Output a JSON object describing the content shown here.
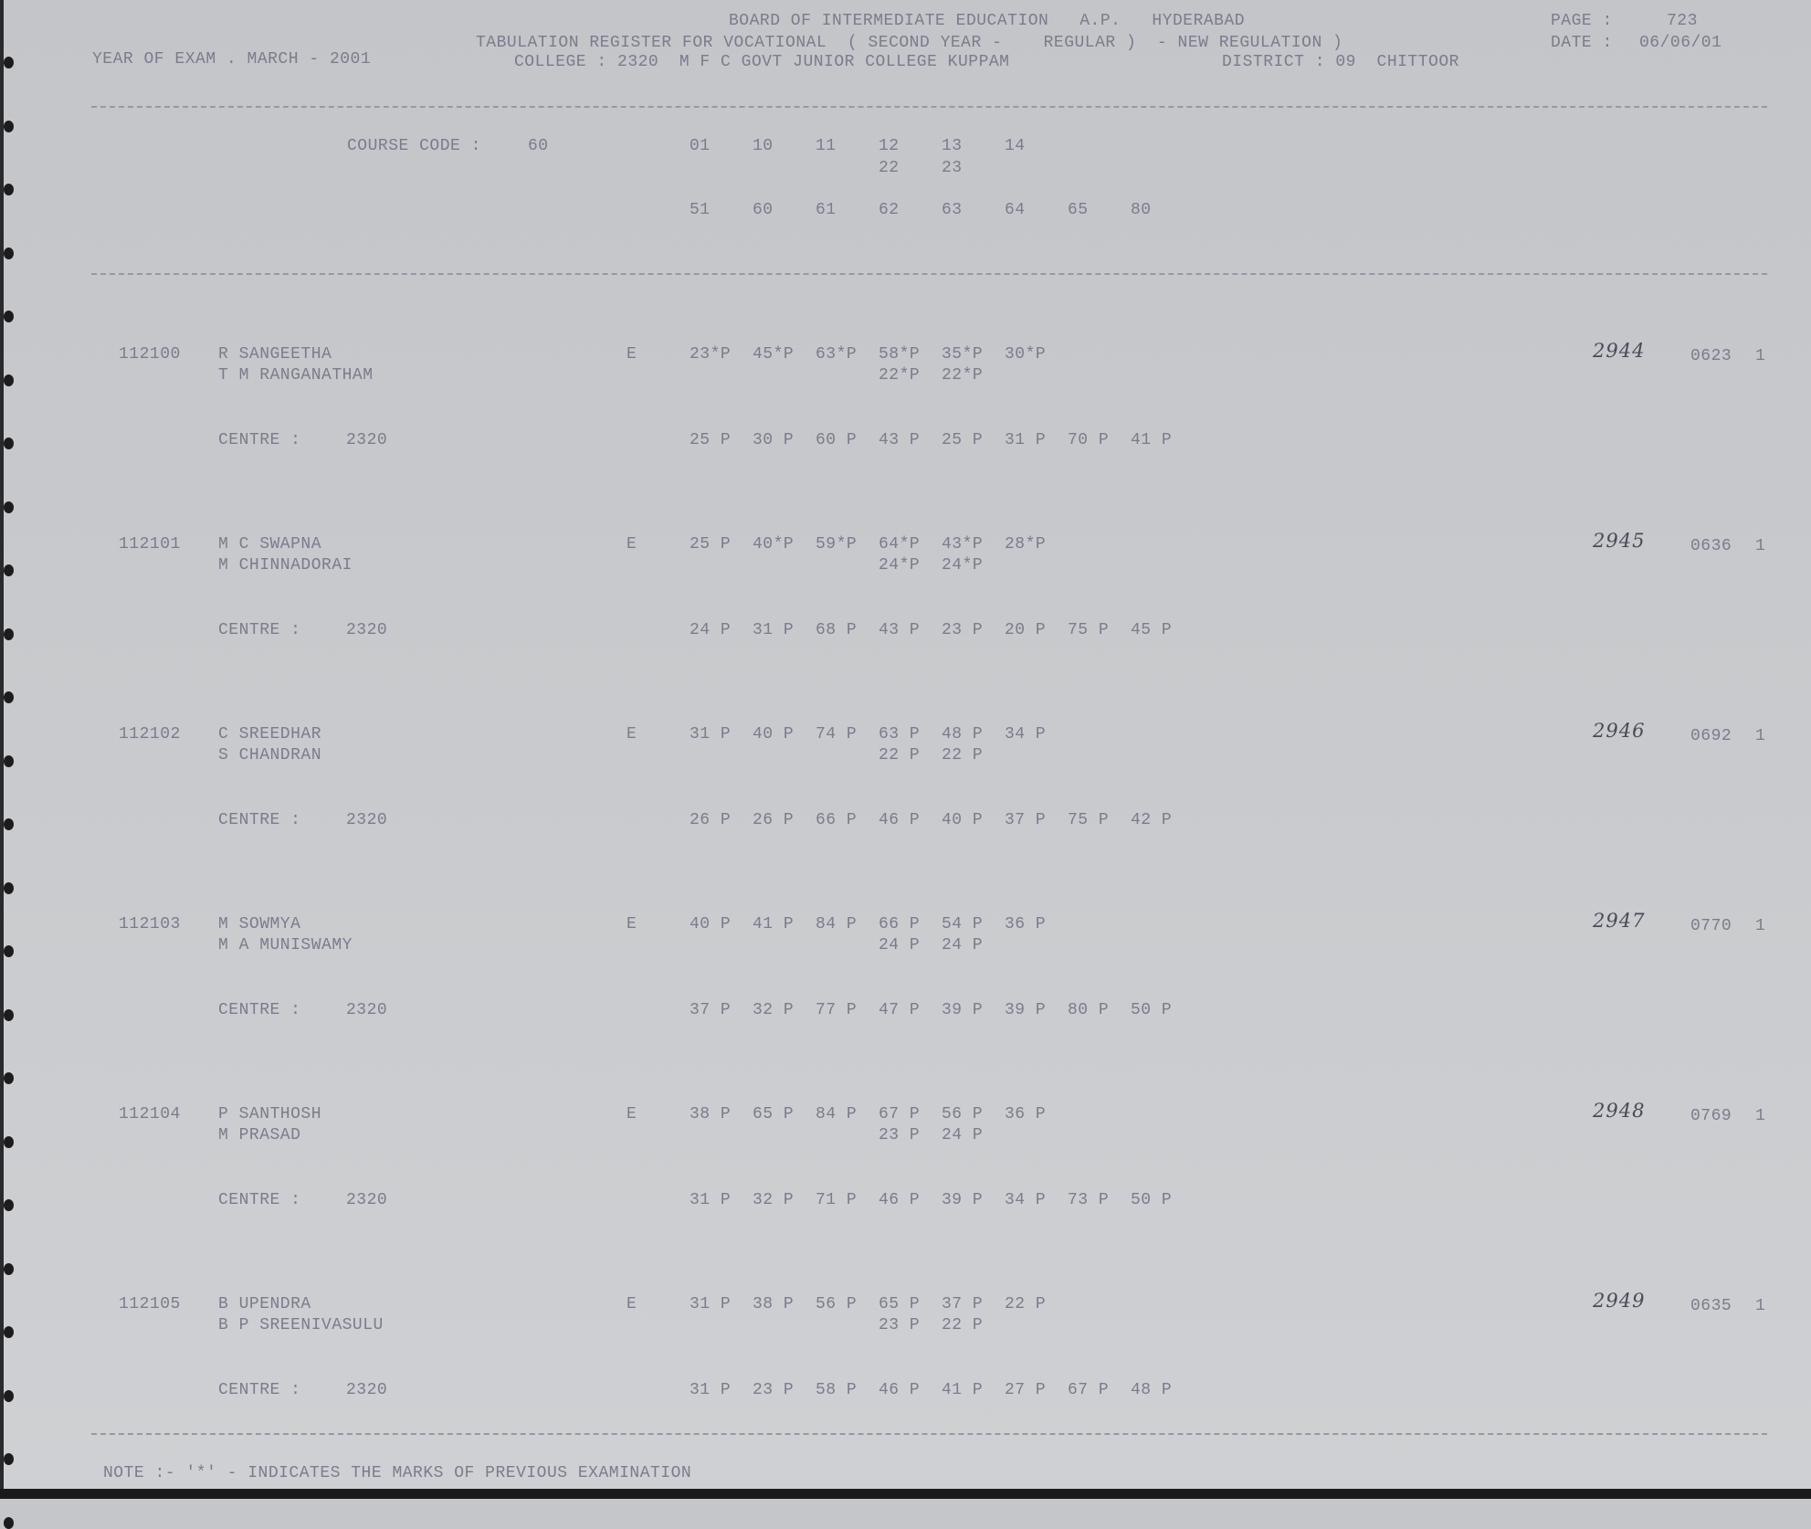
{
  "header": {
    "board": "BOARD OF INTERMEDIATE EDUCATION   A.P.   HYDERABAD",
    "page_label": "PAGE :",
    "page_number": "723",
    "register_title": "TABULATION REGISTER FOR VOCATIONAL  ( SECOND YEAR -    REGULAR )  - NEW REGULATION )",
    "date_label": "DATE :",
    "date": "06/06/01",
    "year_of_exam": "YEAR OF EXAM . MARCH - 2001",
    "college": "COLLEGE : 2320  M F C GOVT JUNIOR COLLEGE KUPPAM",
    "district": "DISTRICT : 09  CHITTOOR"
  },
  "course": {
    "label": "COURSE CODE :",
    "code": "60",
    "subject_codes_row1": [
      "01",
      "10",
      "11",
      "12",
      "13",
      "14"
    ],
    "subject_codes_row1b": [
      "22",
      "23"
    ],
    "subject_codes_row2": [
      "51",
      "60",
      "61",
      "62",
      "63",
      "64",
      "65",
      "80"
    ]
  },
  "students": [
    {
      "roll": "112100",
      "name": "R SANGEETHA",
      "parent": "T M RANGANATHAM",
      "medium": "E",
      "marks1": [
        "23*P",
        "45*P",
        "63*P",
        "58*P",
        "35*P",
        "30*P"
      ],
      "marks1b": [
        "22*P",
        "22*P"
      ],
      "centre_label": "CENTRE :",
      "centre": "2320",
      "marks2": [
        "25 P",
        "30 P",
        "60 P",
        "43 P",
        "25 P",
        "31 P",
        "70 P",
        "41 P"
      ],
      "handwritten": "2944",
      "code": "0623",
      "flag": "1"
    },
    {
      "roll": "112101",
      "name": "M C SWAPNA",
      "parent": "M CHINNADORAI",
      "medium": "E",
      "marks1": [
        "25 P",
        "40*P",
        "59*P",
        "64*P",
        "43*P",
        "28*P"
      ],
      "marks1b": [
        "24*P",
        "24*P"
      ],
      "centre_label": "CENTRE :",
      "centre": "2320",
      "marks2": [
        "24 P",
        "31 P",
        "68 P",
        "43 P",
        "23 P",
        "20 P",
        "75 P",
        "45 P"
      ],
      "handwritten": "2945",
      "code": "0636",
      "flag": "1"
    },
    {
      "roll": "112102",
      "name": "C SREEDHAR",
      "parent": "S CHANDRAN",
      "medium": "E",
      "marks1": [
        "31 P",
        "40 P",
        "74 P",
        "63 P",
        "48 P",
        "34 P"
      ],
      "marks1b": [
        "22 P",
        "22 P"
      ],
      "centre_label": "CENTRE :",
      "centre": "2320",
      "marks2": [
        "26 P",
        "26 P",
        "66 P",
        "46 P",
        "40 P",
        "37 P",
        "75 P",
        "42 P"
      ],
      "handwritten": "2946",
      "code": "0692",
      "flag": "1"
    },
    {
      "roll": "112103",
      "name": "M SOWMYA",
      "parent": "M A MUNISWAMY",
      "medium": "E",
      "marks1": [
        "40 P",
        "41 P",
        "84 P",
        "66 P",
        "54 P",
        "36 P"
      ],
      "marks1b": [
        "24 P",
        "24 P"
      ],
      "centre_label": "CENTRE :",
      "centre": "2320",
      "marks2": [
        "37 P",
        "32 P",
        "77 P",
        "47 P",
        "39 P",
        "39 P",
        "80 P",
        "50 P"
      ],
      "handwritten": "2947",
      "code": "0770",
      "flag": "1"
    },
    {
      "roll": "112104",
      "name": "P SANTHOSH",
      "parent": "M PRASAD",
      "medium": "E",
      "marks1": [
        "38 P",
        "65 P",
        "84 P",
        "67 P",
        "56 P",
        "36 P"
      ],
      "marks1b": [
        "23 P",
        "24 P"
      ],
      "centre_label": "CENTRE :",
      "centre": "2320",
      "marks2": [
        "31 P",
        "32 P",
        "71 P",
        "46 P",
        "39 P",
        "34 P",
        "73 P",
        "50 P"
      ],
      "handwritten": "2948",
      "code": "0769",
      "flag": "1"
    },
    {
      "roll": "112105",
      "name": "B UPENDRA",
      "parent": "B P SREENIVASULU",
      "medium": "E",
      "marks1": [
        "31 P",
        "38 P",
        "56 P",
        "65 P",
        "37 P",
        "22 P"
      ],
      "marks1b": [
        "23 P",
        "22 P"
      ],
      "centre_label": "CENTRE :",
      "centre": "2320",
      "marks2": [
        "31 P",
        "23 P",
        "58 P",
        "46 P",
        "41 P",
        "27 P",
        "67 P",
        "48 P"
      ],
      "handwritten": "2949",
      "code": "0635",
      "flag": "1"
    }
  ],
  "note": "NOTE :- '*' - INDICATES THE MARKS OF PREVIOUS EXAMINATION",
  "colors": {
    "paper": "#c8cacd",
    "print": "#7b7c8c",
    "handwriting": "#4a4a58"
  }
}
